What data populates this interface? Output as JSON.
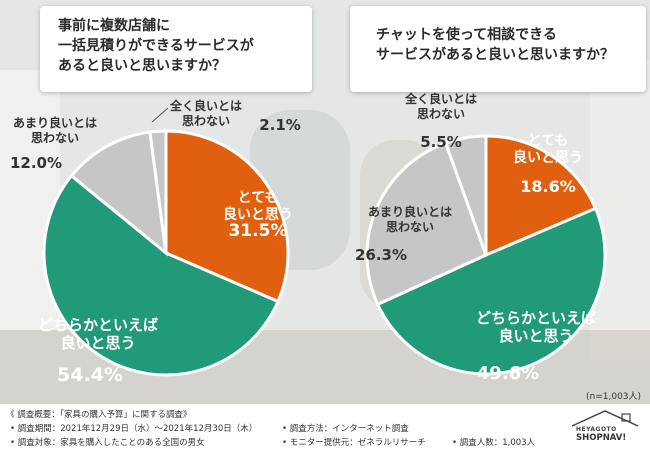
{
  "chart_data": [
    {
      "type": "pie",
      "title": "事前に複数店舗に\n一括見積りができるサービスが\nあると良いと思いますか？",
      "categories": [
        "とても\n良いと思う",
        "どちらかといえば\n良いと思う",
        "あまり良いとは\n思わない",
        "全く良いとは\n思わない"
      ],
      "values": [
        31.5,
        54.4,
        12.0,
        2.1
      ],
      "value_labels": [
        "31.5%",
        "54.4%",
        "12.0%",
        "2.1%"
      ],
      "colors": [
        "#e0600f",
        "#209a78",
        "#c6c6c6",
        "#c6c6c6"
      ]
    },
    {
      "type": "pie",
      "title": "チャットを使って相談できる\nサービスがあると良いと思いますか？",
      "categories": [
        "とても\n良いと思う",
        "どちらかといえば\n良いと思う",
        "あまり良いとは\n思わない",
        "全く良いとは\n思わない"
      ],
      "values": [
        18.6,
        49.6,
        26.3,
        5.5
      ],
      "value_labels": [
        "18.6%",
        "49.6%",
        "26.3%",
        "5.5%"
      ],
      "colors": [
        "#e0600f",
        "#209a78",
        "#c6c6c6",
        "#c6c6c6"
      ]
    }
  ],
  "sample_note": "(n=1,003人)",
  "footer": {
    "line1": "《 調査概要：「家具の購入予算」に関する調査》",
    "period": "• 調査期間：2021年12月29日（水）～2021年12月30日（木）",
    "target": "• 調査対象：家具を購入したことのある全国の男女",
    "method": "• 調査方法：インターネット調査",
    "provider": "• モニター提供元：ゼネラルリサーチ",
    "count": "• 調査人数：1,003人"
  },
  "logo": {
    "line1": "HEYAGOTO",
    "line2": "SHOPNAV!"
  }
}
